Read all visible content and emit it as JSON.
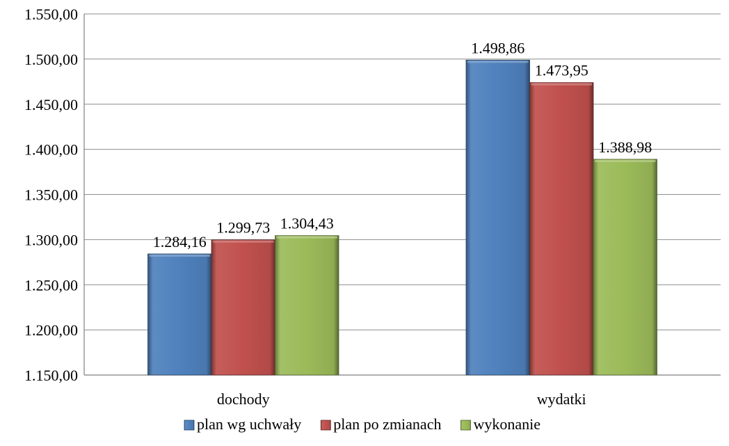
{
  "chart_data": {
    "type": "bar",
    "categories": [
      "dochody",
      "wydatki"
    ],
    "series": [
      {
        "name": "plan wg uchwały",
        "values": [
          1284.16,
          1498.86
        ],
        "labels": [
          "1.284,16",
          "1.498,86"
        ],
        "color": "#4f81bd"
      },
      {
        "name": "plan po zmianach",
        "values": [
          1299.73,
          1473.95
        ],
        "labels": [
          "1.299,73",
          "1.473,95"
        ],
        "color": "#c0504d"
      },
      {
        "name": "wykonanie",
        "values": [
          1304.43,
          1388.98
        ],
        "labels": [
          "1.304,43",
          "1.388,98"
        ],
        "color": "#9bbb59"
      }
    ],
    "ylim": [
      1150,
      1550
    ],
    "yticks": [
      1150,
      1200,
      1250,
      1300,
      1350,
      1400,
      1450,
      1500,
      1550
    ],
    "ytick_labels": [
      "1.150,00",
      "1.200,00",
      "1.250,00",
      "1.300,00",
      "1.350,00",
      "1.400,00",
      "1.450,00",
      "1.500,00",
      "1.550,00"
    ],
    "grid": true,
    "legend_position": "bottom",
    "title": "",
    "xlabel": "",
    "ylabel": ""
  }
}
